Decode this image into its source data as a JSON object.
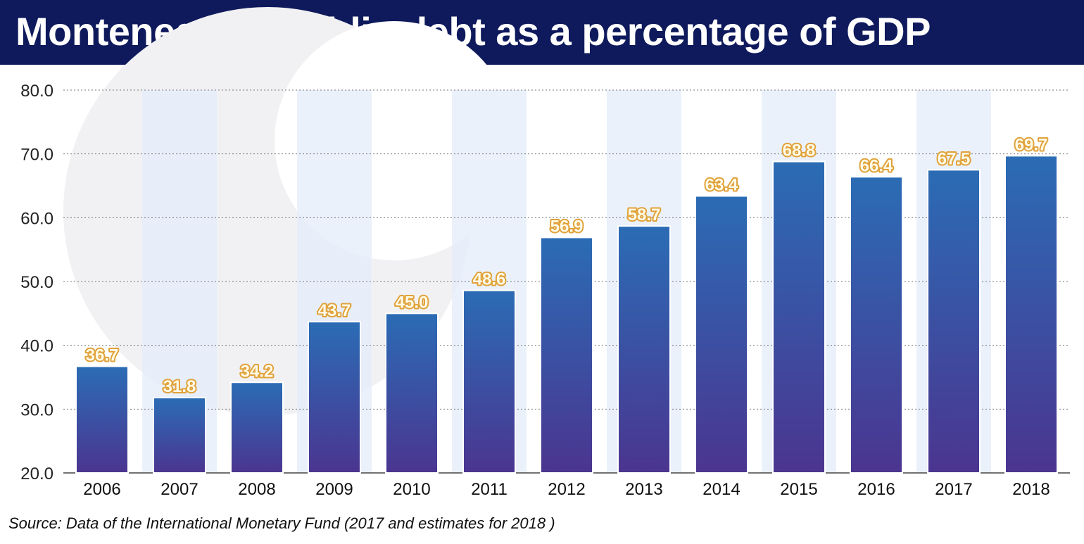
{
  "header": {
    "title": "Montenegro’s public debt as a percentage of GDP"
  },
  "source": "Source: Data of the International Monetary Fund (2017 and estimates for 2018 )",
  "colors": {
    "header_bg": "#0f1a5c",
    "bar_top": "#2b6cb5",
    "bar_bottom": "#4b3590",
    "label_text": "#fffbe8",
    "label_outline": "#e0a23a",
    "stripe": "#e6eefa"
  },
  "chart_data": {
    "type": "bar",
    "categories": [
      "2006",
      "2007",
      "2008",
      "2009",
      "2010",
      "2011",
      "2012",
      "2013",
      "2014",
      "2015",
      "2016",
      "2017",
      "2018"
    ],
    "values": [
      36.7,
      31.8,
      34.2,
      43.7,
      45.0,
      48.6,
      56.9,
      58.7,
      63.4,
      68.8,
      66.4,
      67.5,
      69.7
    ],
    "value_labels": [
      "36.7",
      "31.8",
      "34.2",
      "43.7",
      "45.0",
      "48.6",
      "56.9",
      "58.7",
      "63.4",
      "68.8",
      "66.4",
      "67.5",
      "69.7"
    ],
    "yticks": [
      "20.0",
      "30.0",
      "40.0",
      "50.0",
      "60.0",
      "70.0",
      "80.0"
    ],
    "ylim": [
      20,
      80
    ],
    "grid": "horizontal dotted",
    "legend": "none"
  }
}
